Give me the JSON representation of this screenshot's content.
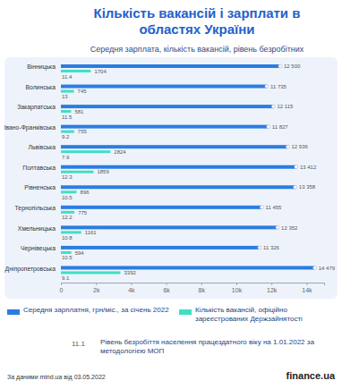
{
  "chart_data": {
    "type": "bar",
    "orientation": "horizontal",
    "title": "Кількість вакансій і зарплати в областях України",
    "subtitle": "Середня зарплата, кількість вакансій,  рівень безробітних",
    "categories": [
      "Вінницька",
      "Волинська",
      "Закарпатська",
      "Івано-Франківська",
      "Львівська",
      "Полтавська",
      "Рівненська",
      "Тернопільська",
      "Хмельницька",
      "Чернівецька",
      "Дніпропетровська"
    ],
    "series": [
      {
        "name": "Середня зарплатня, грн/міс., за січень 2022",
        "type": "bar",
        "color": "#2b7de0",
        "values": [
          12500,
          11735,
          12115,
          11827,
          12936,
          13412,
          13358,
          11455,
          12352,
          11326,
          14479
        ],
        "value_labels": [
          "12 500",
          "11 735",
          "12 115",
          "11 827",
          "12 936",
          "13 412",
          "13 358",
          "11 455",
          "12 352",
          "11 326",
          "14 479"
        ]
      },
      {
        "name": "Кількість вакансій, офіційно зареєстрованих Держзайнятості",
        "type": "bar",
        "color": "#40dfc4",
        "values": [
          1704,
          745,
          581,
          755,
          2824,
          1859,
          896,
          775,
          1161,
          594,
          3392
        ]
      },
      {
        "name": "Рівень безробіття населення працездатного віку на 1.01.2022 за методологією МОП",
        "type": "text",
        "color": "#2b7de0",
        "values": [
          11.4,
          13,
          11.5,
          9.2,
          7.9,
          12.3,
          10.5,
          12.2,
          10.8,
          10.5,
          9.1
        ]
      }
    ],
    "xlim": [
      0,
      15000
    ],
    "xticks": [
      0,
      {
        "value": 2000,
        "label": "2k"
      },
      {
        "value": 4000,
        "label": "4k"
      },
      {
        "value": 6000,
        "label": "6k"
      },
      {
        "value": 8000,
        "label": "8k"
      },
      {
        "value": 10000,
        "label": "10k"
      },
      {
        "value": 12000,
        "label": "12k"
      },
      {
        "value": 14000,
        "label": "14k"
      }
    ],
    "grid": false,
    "data_labels": true,
    "legend": "bottom",
    "annotations": [
      "11.1"
    ],
    "source": "За даними mind.ua від 03.05.2022",
    "brand": "finance.ua"
  }
}
